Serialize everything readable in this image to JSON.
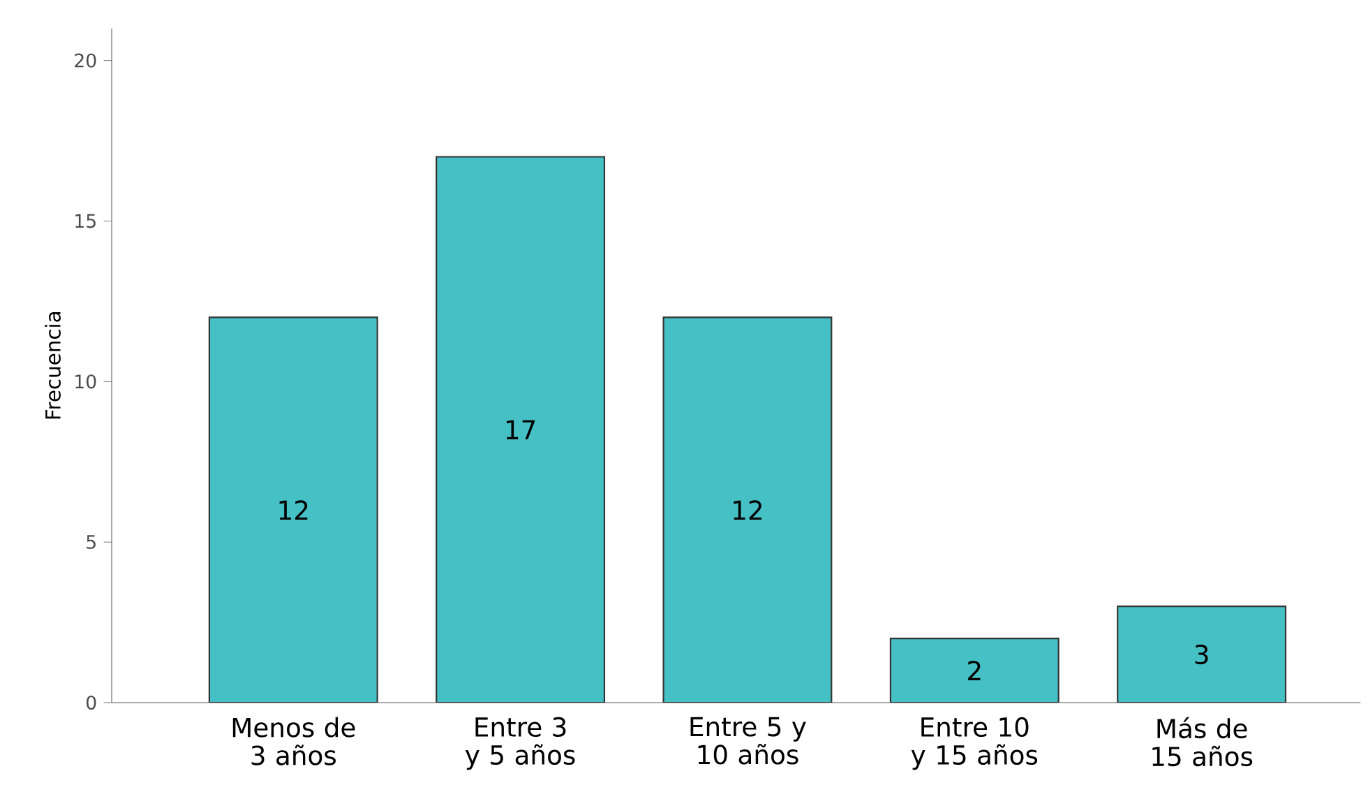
{
  "chart_data": {
    "type": "bar",
    "ylabel": "Frecuencia",
    "categories": [
      "Menos de 3 años",
      "Entre 3 y 5 años",
      "Entre 5 y 10 años",
      "Entre 10 y 15 años",
      "Más de 15 años"
    ],
    "values": [
      12,
      17,
      12,
      2,
      3
    ],
    "color": "#45c0c4",
    "ylim": [
      0,
      21
    ],
    "yticks": [
      0,
      5,
      10,
      15,
      20
    ],
    "grid": false,
    "data_labels": true
  }
}
